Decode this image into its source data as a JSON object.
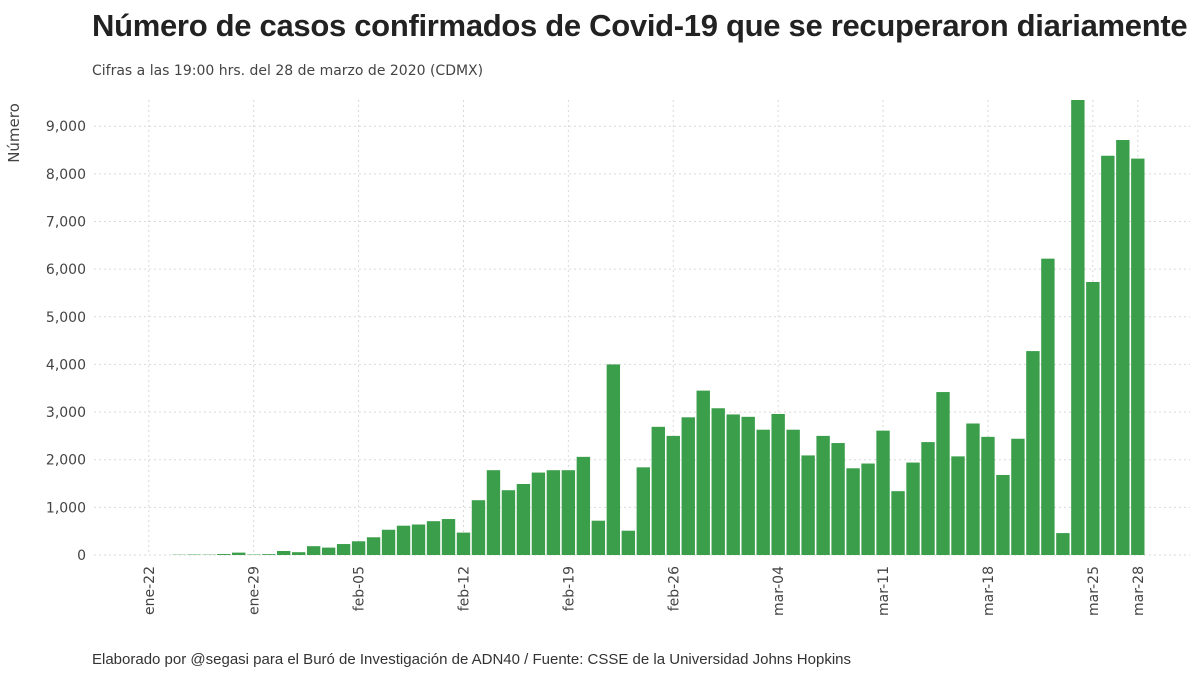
{
  "title": "Número de casos confirmados de Covid-19 que se recuperaron diariamente",
  "subtitle": "Cifras a las 19:00 hrs. del 28 de marzo de 2020 (CDMX)",
  "caption": "Elaborado por @segasi para el Buró de Investigación de ADN40 / Fuente: CSSE de la Universidad Johns Hopkins",
  "chart_data": {
    "type": "bar",
    "bar_color": "#3a9e4b",
    "ylabel": "Número",
    "xlabel": "",
    "ylim": [
      0,
      9550
    ],
    "y_ticks": [
      0,
      1000,
      2000,
      3000,
      4000,
      5000,
      6000,
      7000,
      8000,
      9000
    ],
    "y_tick_labels": [
      "0",
      "1,000",
      "2,000",
      "3,000",
      "4,000",
      "5,000",
      "6,000",
      "7,000",
      "8,000",
      "9,000"
    ],
    "x_ticks": [
      "2020-01-22",
      "2020-01-29",
      "2020-02-05",
      "2020-02-12",
      "2020-02-19",
      "2020-02-26",
      "2020-03-04",
      "2020-03-11",
      "2020-03-18",
      "2020-03-25",
      "2020-03-28"
    ],
    "x_tick_labels": [
      "ene-22",
      "ene-29",
      "feb-05",
      "feb-12",
      "feb-19",
      "feb-26",
      "mar-04",
      "mar-11",
      "mar-18",
      "mar-25",
      "mar-28"
    ],
    "grid": true,
    "legend": "none",
    "dates": [
      "2020-01-22",
      "2020-01-23",
      "2020-01-24",
      "2020-01-25",
      "2020-01-26",
      "2020-01-27",
      "2020-01-28",
      "2020-01-29",
      "2020-01-30",
      "2020-01-31",
      "2020-02-01",
      "2020-02-02",
      "2020-02-03",
      "2020-02-04",
      "2020-02-05",
      "2020-02-06",
      "2020-02-07",
      "2020-02-08",
      "2020-02-09",
      "2020-02-10",
      "2020-02-11",
      "2020-02-12",
      "2020-02-13",
      "2020-02-14",
      "2020-02-15",
      "2020-02-16",
      "2020-02-17",
      "2020-02-18",
      "2020-02-19",
      "2020-02-20",
      "2020-02-21",
      "2020-02-22",
      "2020-02-23",
      "2020-02-24",
      "2020-02-25",
      "2020-02-26",
      "2020-02-27",
      "2020-02-28",
      "2020-02-29",
      "2020-03-01",
      "2020-03-02",
      "2020-03-03",
      "2020-03-04",
      "2020-03-05",
      "2020-03-06",
      "2020-03-07",
      "2020-03-08",
      "2020-03-09",
      "2020-03-10",
      "2020-03-11",
      "2020-03-12",
      "2020-03-13",
      "2020-03-14",
      "2020-03-15",
      "2020-03-16",
      "2020-03-17",
      "2020-03-18",
      "2020-03-19",
      "2020-03-20",
      "2020-03-21",
      "2020-03-22",
      "2020-03-23",
      "2020-03-24",
      "2020-03-25",
      "2020-03-26",
      "2020-03-27",
      "2020-03-28"
    ],
    "values": [
      0,
      0,
      6,
      9,
      7,
      20,
      50,
      9,
      17,
      84,
      59,
      185,
      155,
      230,
      288,
      372,
      530,
      615,
      640,
      710,
      755,
      470,
      1150,
      1780,
      1360,
      1490,
      1730,
      1780,
      1780,
      2060,
      720,
      4000,
      510,
      1840,
      2690,
      2500,
      2890,
      3450,
      3080,
      2950,
      2900,
      2630,
      2960,
      2630,
      2090,
      2500,
      2350,
      1820,
      1920,
      2610,
      1340,
      1940,
      2370,
      3420,
      2070,
      2760,
      2480,
      1680,
      2440,
      4280,
      6220,
      460,
      9550,
      5730,
      8380,
      8710,
      8320
    ]
  }
}
